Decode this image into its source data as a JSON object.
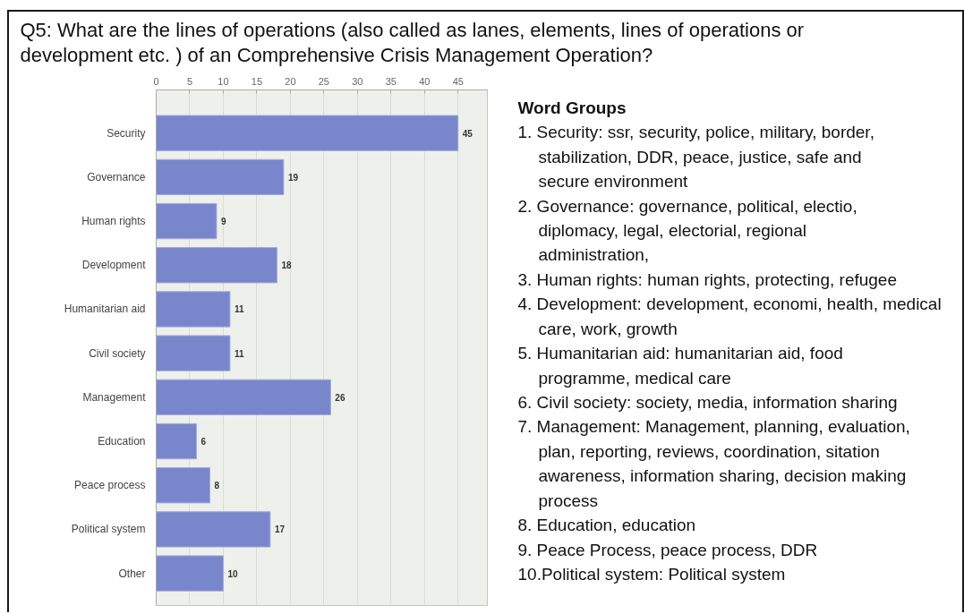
{
  "chart_data": {
    "type": "bar",
    "orientation": "horizontal",
    "title": "Q5: What are the lines of operations (also called as lanes, elements, lines of operations or development etc. ) of an Comprehensive Crisis Management Operation?",
    "categories": [
      "Security",
      "Governance",
      "Human rights",
      "Development",
      "Humanitarian aid",
      "Civil society",
      "Management",
      "Education",
      "Peace process",
      "Political system",
      "Other"
    ],
    "values": [
      45,
      19,
      9,
      18,
      11,
      11,
      26,
      6,
      8,
      17,
      10
    ],
    "color": "#7a86cc",
    "xlim": [
      0,
      49.5
    ],
    "xticks": [
      0,
      5,
      10,
      15,
      20,
      25,
      30,
      35,
      40,
      45
    ],
    "grid": "x",
    "data_labels": true,
    "annotations": [
      "Word Groups",
      "1. Security: ssr, security, police, military, border, stabilization, DDR, peace, justice, safe and secure environment",
      "2. Governance: governance, political, electio, diplomacy, legal, electorial, regional administration,",
      "3. Human rights: human rights, protecting, refugee",
      "4. Development: development, economi, health, medical care, work, growth",
      "5. Humanitarian aid: humanitarian aid, food programme, medical care",
      "6. Civil society: society, media, information sharing",
      "7. Management: Management, planning, evaluation, plan, reporting, reviews, coordination, sitation awareness, information sharing, decision making process",
      "8. Education, education",
      "9. Peace Process, peace process, DDR",
      "10.Political system: Political system"
    ]
  }
}
